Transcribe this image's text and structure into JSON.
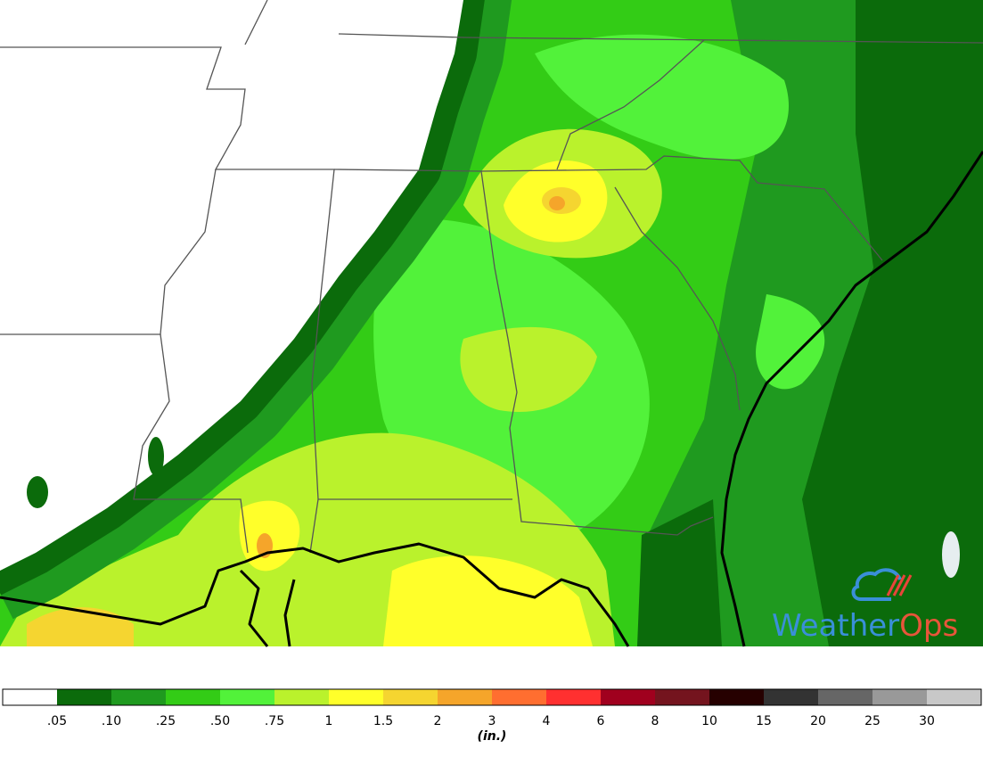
{
  "legend": {
    "labels": [
      ".05",
      ".10",
      ".25",
      ".50",
      ".75",
      "1",
      "1.5",
      "2",
      "3",
      "4",
      "6",
      "8",
      "10",
      "15",
      "20",
      "25",
      "30"
    ],
    "colors": [
      "#ffffff",
      "#0b6b0b",
      "#1f9a1f",
      "#33cc16",
      "#52f23a",
      "#baf22c",
      "#ffff2a",
      "#f5d530",
      "#f5a52a",
      "#ff6e30",
      "#ff3030",
      "#a0001e",
      "#74141e",
      "#260000",
      "#333333",
      "#666666",
      "#999999",
      "#c8c8c8"
    ],
    "unit": "(in.)"
  },
  "logo": {
    "text_1": "Weather",
    "text_2": "Ops"
  }
}
